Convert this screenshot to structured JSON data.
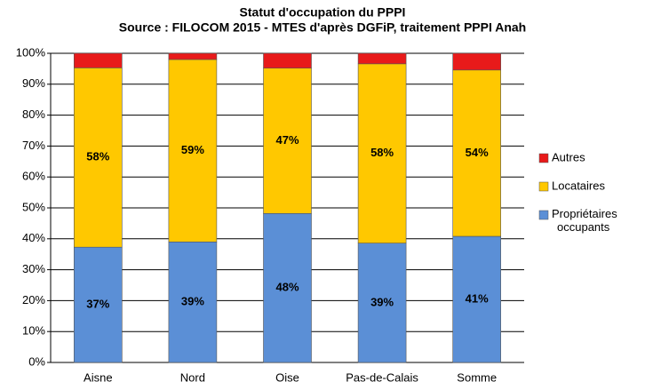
{
  "chart_data": {
    "type": "stacked_bar",
    "title": "Statut d'occupation du PPPI",
    "subtitle": "Source : FILOCOM 2015 - MTES d'après DGFiP, traitement PPPI Anah",
    "categories": [
      "Aisne",
      "Nord",
      "Oise",
      "Pas-de-Calais",
      "Somme"
    ],
    "series": [
      {
        "name": "Propriétaires occupants",
        "color": "#5b8fd6",
        "values": [
          37.3,
          39,
          48.2,
          38.6,
          40.8
        ],
        "value_labels": [
          "37%",
          "39%",
          "48%",
          "39%",
          "41%"
        ]
      },
      {
        "name": "Locataires",
        "color": "#ffc800",
        "values": [
          58,
          59,
          47,
          58,
          53.8
        ],
        "value_labels": [
          "58%",
          "59%",
          "47%",
          "58%",
          "54%"
        ]
      },
      {
        "name": "Autres",
        "color": "#e81a1a",
        "values": [
          4.7,
          2,
          4.8,
          3.4,
          5.4
        ]
      }
    ],
    "ylim": [
      0,
      100
    ],
    "yticks": [
      {
        "value": 0,
        "label": "0%"
      },
      {
        "value": 10,
        "label": "10%"
      },
      {
        "value": 20,
        "label": "20%"
      },
      {
        "value": 30,
        "label": "30%"
      },
      {
        "value": 40,
        "label": "40%"
      },
      {
        "value": 50,
        "label": "50%"
      },
      {
        "value": 60,
        "label": "60%"
      },
      {
        "value": 70,
        "label": "70%"
      },
      {
        "value": 80,
        "label": "80%"
      },
      {
        "value": 90,
        "label": "90%"
      },
      {
        "value": 100,
        "label": "100%"
      }
    ],
    "grid": true,
    "legend": "right"
  }
}
